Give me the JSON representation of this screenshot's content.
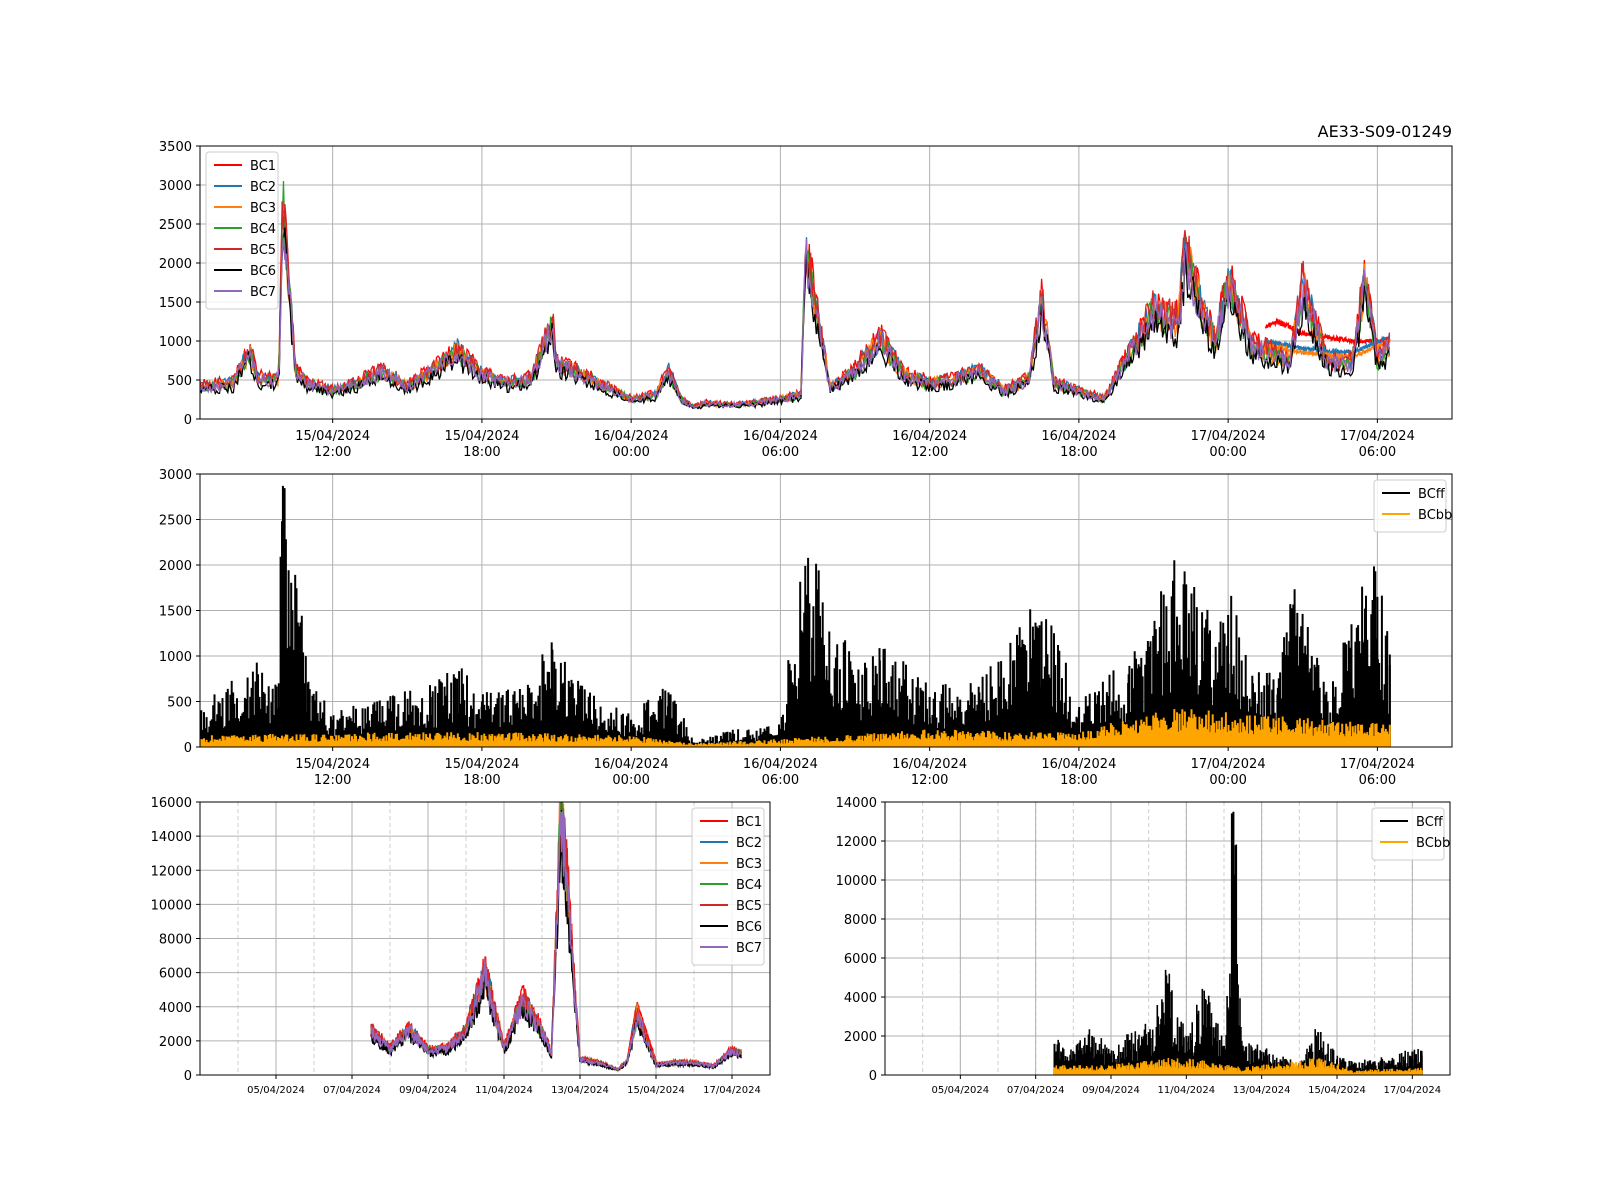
{
  "title": "AE33-S09-01249",
  "colors": {
    "BC1": "#ff0000",
    "BC2": "#1f77b4",
    "BC3": "#ff7f0e",
    "BC4": "#2ca02c",
    "BC5": "#d62728",
    "BC6": "#000000",
    "BC7": "#9467bd",
    "BCff": "#000000",
    "BCbb": "#ffa500",
    "grid": "#b0b0b0"
  },
  "chart_data": [
    {
      "id": "top",
      "type": "line",
      "title": "AE33-S09-01249",
      "x_range": [
        "2024-04-15 06:40",
        "2024-04-17 09:00"
      ],
      "x_ticks": [
        {
          "t": "2024-04-15 12:00",
          "line1": "15/04/2024",
          "line2": "12:00"
        },
        {
          "t": "2024-04-15 18:00",
          "line1": "15/04/2024",
          "line2": "18:00"
        },
        {
          "t": "2024-04-16 00:00",
          "line1": "16/04/2024",
          "line2": "00:00"
        },
        {
          "t": "2024-04-16 06:00",
          "line1": "16/04/2024",
          "line2": "06:00"
        },
        {
          "t": "2024-04-16 12:00",
          "line1": "16/04/2024",
          "line2": "12:00"
        },
        {
          "t": "2024-04-16 18:00",
          "line1": "16/04/2024",
          "line2": "18:00"
        },
        {
          "t": "2024-04-17 00:00",
          "line1": "17/04/2024",
          "line2": "00:00"
        },
        {
          "t": "2024-04-17 06:00",
          "line1": "17/04/2024",
          "line2": "06:00"
        }
      ],
      "ylim": [
        0,
        3500
      ],
      "y_ticks": [
        0,
        500,
        1000,
        1500,
        2000,
        2500,
        3000,
        3500
      ],
      "legend": [
        "BC1",
        "BC2",
        "BC3",
        "BC4",
        "BC5",
        "BC6",
        "BC7"
      ],
      "legend_position": "top-left",
      "grid": true,
      "series": [
        {
          "name": "BC7",
          "x": [
            "2024-04-15 06:40",
            "2024-04-15 08:00",
            "2024-04-15 08:40",
            "2024-04-15 09:00",
            "2024-04-15 09:50",
            "2024-04-15 10:00",
            "2024-04-15 10:30",
            "2024-04-15 11:00",
            "2024-04-15 12:00",
            "2024-04-15 13:00",
            "2024-04-15 14:00",
            "2024-04-15 15:00",
            "2024-04-15 16:00",
            "2024-04-15 17:00",
            "2024-04-15 18:00",
            "2024-04-15 19:00",
            "2024-04-15 20:00",
            "2024-04-15 20:50",
            "2024-04-15 21:00",
            "2024-04-15 22:00",
            "2024-04-15 23:00",
            "2024-04-16 00:00",
            "2024-04-16 01:00",
            "2024-04-16 01:30",
            "2024-04-16 02:00",
            "2024-04-16 02:30",
            "2024-04-16 03:00",
            "2024-04-16 04:00",
            "2024-04-16 05:00",
            "2024-04-16 06:00",
            "2024-04-16 06:50",
            "2024-04-16 07:00",
            "2024-04-16 08:00",
            "2024-04-16 09:00",
            "2024-04-16 10:00",
            "2024-04-16 11:00",
            "2024-04-16 12:00",
            "2024-04-16 13:00",
            "2024-04-16 14:00",
            "2024-04-16 15:00",
            "2024-04-16 16:00",
            "2024-04-16 16:30",
            "2024-04-16 17:00",
            "2024-04-16 18:00",
            "2024-04-16 19:00",
            "2024-04-16 20:00",
            "2024-04-16 21:00",
            "2024-04-16 22:00",
            "2024-04-16 22:15",
            "2024-04-16 23:00",
            "2024-04-16 23:30",
            "2024-04-17 00:00",
            "2024-04-17 01:00",
            "2024-04-17 02:00",
            "2024-04-17 02:30",
            "2024-04-17 03:00",
            "2024-04-17 04:00",
            "2024-04-17 05:00",
            "2024-04-17 05:30",
            "2024-04-17 06:00",
            "2024-04-17 06:30"
          ],
          "y": [
            400,
            450,
            850,
            500,
            500,
            2700,
            600,
            450,
            350,
            450,
            600,
            400,
            600,
            850,
            550,
            450,
            500,
            1200,
            700,
            550,
            400,
            250,
            300,
            600,
            250,
            150,
            200,
            180,
            200,
            250,
            300,
            2100,
            400,
            600,
            1000,
            550,
            450,
            500,
            600,
            350,
            500,
            1500,
            450,
            350,
            250,
            800,
            1350,
            1200,
            2100,
            1300,
            1000,
            1700,
            900,
            800,
            750,
            1650,
            700,
            700,
            1750,
            750,
            900
          ]
        },
        {
          "name": "BC1",
          "x": [
            "2024-04-17 01:30",
            "2024-04-17 02:00",
            "2024-04-17 03:00",
            "2024-04-17 04:00",
            "2024-04-17 05:00",
            "2024-04-17 06:00",
            "2024-04-17 06:30"
          ],
          "y": [
            1200,
            1250,
            1100,
            1050,
            1000,
            1000,
            1000
          ]
        },
        {
          "name": "BC2",
          "x": [
            "2024-04-17 01:30",
            "2024-04-17 03:00",
            "2024-04-17 05:00",
            "2024-04-17 06:30"
          ],
          "y": [
            1000,
            900,
            850,
            1050
          ]
        },
        {
          "name": "BC3",
          "x": [
            "2024-04-17 01:30",
            "2024-04-17 03:00",
            "2024-04-17 05:00",
            "2024-04-17 06:30"
          ],
          "y": [
            950,
            850,
            800,
            1000
          ]
        }
      ]
    },
    {
      "id": "middle",
      "type": "area",
      "x_range": [
        "2024-04-15 06:40",
        "2024-04-17 09:00"
      ],
      "ylim": [
        0,
        3000
      ],
      "y_ticks": [
        0,
        500,
        1000,
        1500,
        2000,
        2500,
        3000
      ],
      "legend": [
        "BCff",
        "BCbb"
      ],
      "legend_position": "top-right",
      "grid": true,
      "series": [
        {
          "name": "BCff",
          "x": [
            "2024-04-15 06:40",
            "2024-04-15 08:00",
            "2024-04-15 09:00",
            "2024-04-15 09:50",
            "2024-04-15 10:00",
            "2024-04-15 11:00",
            "2024-04-15 12:00",
            "2024-04-15 14:00",
            "2024-04-15 16:00",
            "2024-04-15 17:00",
            "2024-04-15 18:00",
            "2024-04-15 20:00",
            "2024-04-15 20:50",
            "2024-04-15 22:00",
            "2024-04-16 00:00",
            "2024-04-16 01:30",
            "2024-04-16 02:30",
            "2024-04-16 04:00",
            "2024-04-16 06:00",
            "2024-04-16 07:00",
            "2024-04-16 09:00",
            "2024-04-16 10:00",
            "2024-04-16 12:00",
            "2024-04-16 14:00",
            "2024-04-16 16:30",
            "2024-04-16 18:00",
            "2024-04-16 20:00",
            "2024-04-16 21:00",
            "2024-04-16 22:15",
            "2024-04-16 23:30",
            "2024-04-17 00:00",
            "2024-04-17 01:00",
            "2024-04-17 02:00",
            "2024-04-17 02:30",
            "2024-04-17 04:00",
            "2024-04-17 05:30",
            "2024-04-17 06:00",
            "2024-04-17 06:30"
          ],
          "y": [
            400,
            600,
            800,
            700,
            2870,
            700,
            300,
            450,
            550,
            750,
            500,
            600,
            1070,
            550,
            300,
            600,
            50,
            150,
            200,
            1990,
            700,
            950,
            550,
            600,
            1380,
            400,
            800,
            1200,
            1930,
            1100,
            1450,
            700,
            650,
            1570,
            500,
            1520,
            1650,
            900
          ]
        },
        {
          "name": "BCbb",
          "x": [
            "2024-04-15 06:40",
            "2024-04-15 12:00",
            "2024-04-15 18:00",
            "2024-04-16 00:00",
            "2024-04-16 02:30",
            "2024-04-16 06:00",
            "2024-04-16 12:00",
            "2024-04-16 18:00",
            "2024-04-16 20:00",
            "2024-04-16 22:00",
            "2024-04-17 00:00",
            "2024-04-17 03:00",
            "2024-04-17 06:30"
          ],
          "y": [
            100,
            120,
            130,
            100,
            30,
            70,
            150,
            120,
            250,
            330,
            300,
            250,
            200
          ]
        }
      ]
    },
    {
      "id": "bottom-left",
      "type": "line",
      "x_range": [
        "2024-04-03",
        "2024-04-18"
      ],
      "x_ticks": [
        "05/04/2024",
        "07/04/2024",
        "09/04/2024",
        "11/04/2024",
        "13/04/2024",
        "15/04/2024",
        "17/04/2024"
      ],
      "ylim": [
        0,
        16000
      ],
      "y_ticks": [
        0,
        2000,
        4000,
        6000,
        8000,
        10000,
        12000,
        14000,
        16000
      ],
      "legend": [
        "BC1",
        "BC2",
        "BC3",
        "BC4",
        "BC5",
        "BC6",
        "BC7"
      ],
      "legend_position": "top-right",
      "grid": true,
      "series": [
        {
          "name": "BC7",
          "x": [
            "2024-04-07 12:00",
            "2024-04-08 00:00",
            "2024-04-08 12:00",
            "2024-04-09 00:00",
            "2024-04-09 12:00",
            "2024-04-10 00:00",
            "2024-04-10 12:00",
            "2024-04-11 00:00",
            "2024-04-11 12:00",
            "2024-04-12 00:00",
            "2024-04-12 06:00",
            "2024-04-12 12:00",
            "2024-04-13 00:00",
            "2024-04-13 12:00",
            "2024-04-14 00:00",
            "2024-04-14 06:00",
            "2024-04-14 12:00",
            "2024-04-15 00:00",
            "2024-04-15 12:00",
            "2024-04-16 00:00",
            "2024-04-16 12:00",
            "2024-04-17 00:00",
            "2024-04-17 06:00"
          ],
          "y": [
            2500,
            1500,
            2600,
            1400,
            1500,
            2500,
            5800,
            1500,
            4300,
            2500,
            1200,
            15500,
            900,
            700,
            300,
            800,
            3500,
            600,
            700,
            700,
            500,
            1400,
            1200
          ]
        },
        {
          "name": "BC1",
          "x": [
            "2024-04-14 06:00",
            "2024-04-14 12:00",
            "2024-04-15 00:00"
          ],
          "y": [
            1000,
            4200,
            800
          ]
        }
      ]
    },
    {
      "id": "bottom-right",
      "type": "area",
      "x_range": [
        "2024-04-03",
        "2024-04-18"
      ],
      "x_ticks": [
        "05/04/2024",
        "07/04/2024",
        "09/04/2024",
        "11/04/2024",
        "13/04/2024",
        "15/04/2024",
        "17/04/2024"
      ],
      "ylim": [
        0,
        14000
      ],
      "y_ticks": [
        0,
        2000,
        4000,
        6000,
        8000,
        10000,
        12000,
        14000
      ],
      "legend": [
        "BCff",
        "BCbb"
      ],
      "legend_position": "top-right",
      "grid": true,
      "series": [
        {
          "name": "BCff",
          "x": [
            "2024-04-07 12:00",
            "2024-04-08 00:00",
            "2024-04-08 12:00",
            "2024-04-09 00:00",
            "2024-04-09 12:00",
            "2024-04-10 00:00",
            "2024-04-10 06:00",
            "2024-04-10 12:00",
            "2024-04-11 00:00",
            "2024-04-11 12:00",
            "2024-04-12 00:00",
            "2024-04-12 06:00",
            "2024-04-12 12:00",
            "2024-04-13 00:00",
            "2024-04-13 12:00",
            "2024-04-14 00:00",
            "2024-04-14 12:00",
            "2024-04-15 00:00",
            "2024-04-15 12:00",
            "2024-04-16 00:00",
            "2024-04-16 12:00",
            "2024-04-17 00:00",
            "2024-04-17 06:00"
          ],
          "y": [
            1600,
            1200,
            2000,
            1000,
            1800,
            2200,
            3000,
            4700,
            2000,
            3900,
            1500,
            13500,
            1500,
            1200,
            800,
            600,
            2200,
            800,
            600,
            700,
            800,
            1200,
            1000
          ]
        },
        {
          "name": "BCbb",
          "x": [
            "2024-04-07 12:00",
            "2024-04-09 00:00",
            "2024-04-10 12:00",
            "2024-04-11 12:00",
            "2024-04-12 12:00",
            "2024-04-14 12:00",
            "2024-04-15 12:00",
            "2024-04-17 06:00"
          ],
          "y": [
            400,
            400,
            700,
            600,
            300,
            700,
            200,
            300
          ]
        }
      ]
    }
  ]
}
